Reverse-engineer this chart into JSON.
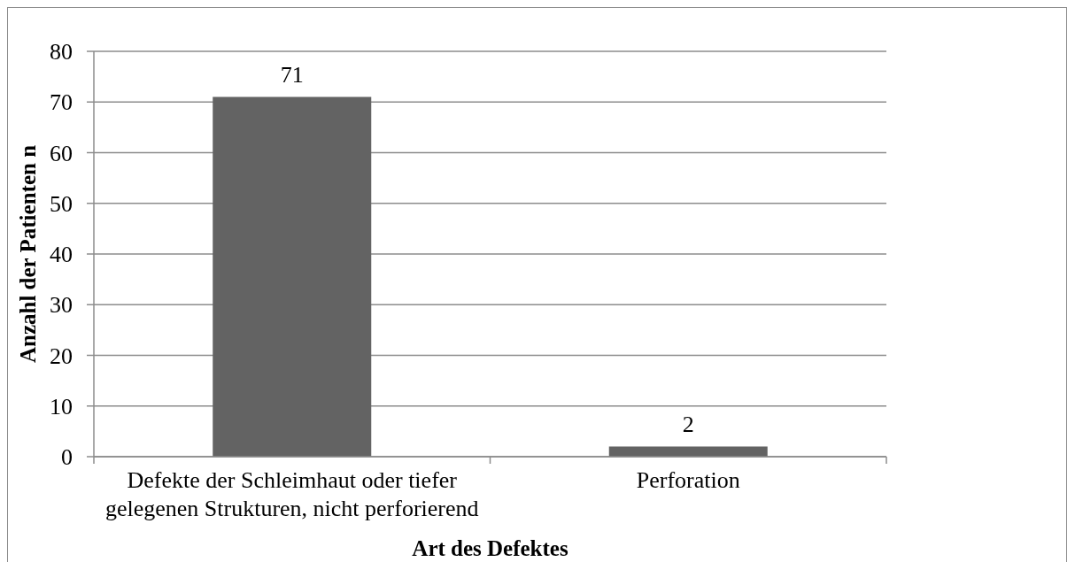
{
  "chart_data": {
    "type": "bar",
    "xlabel": "Art des Defektes",
    "ylabel": "Anzahl der Patienten n",
    "categories": [
      "Defekte der Schleimhaut oder tiefer gelegenen Strukturen, nicht perforierend",
      "Perforation"
    ],
    "values": [
      71,
      2
    ],
    "color": "#636363",
    "ylim": [
      0,
      80
    ],
    "yticks": [
      0,
      10,
      20,
      30,
      40,
      50,
      60,
      70,
      80
    ],
    "grid": "y",
    "data_labels": true
  }
}
